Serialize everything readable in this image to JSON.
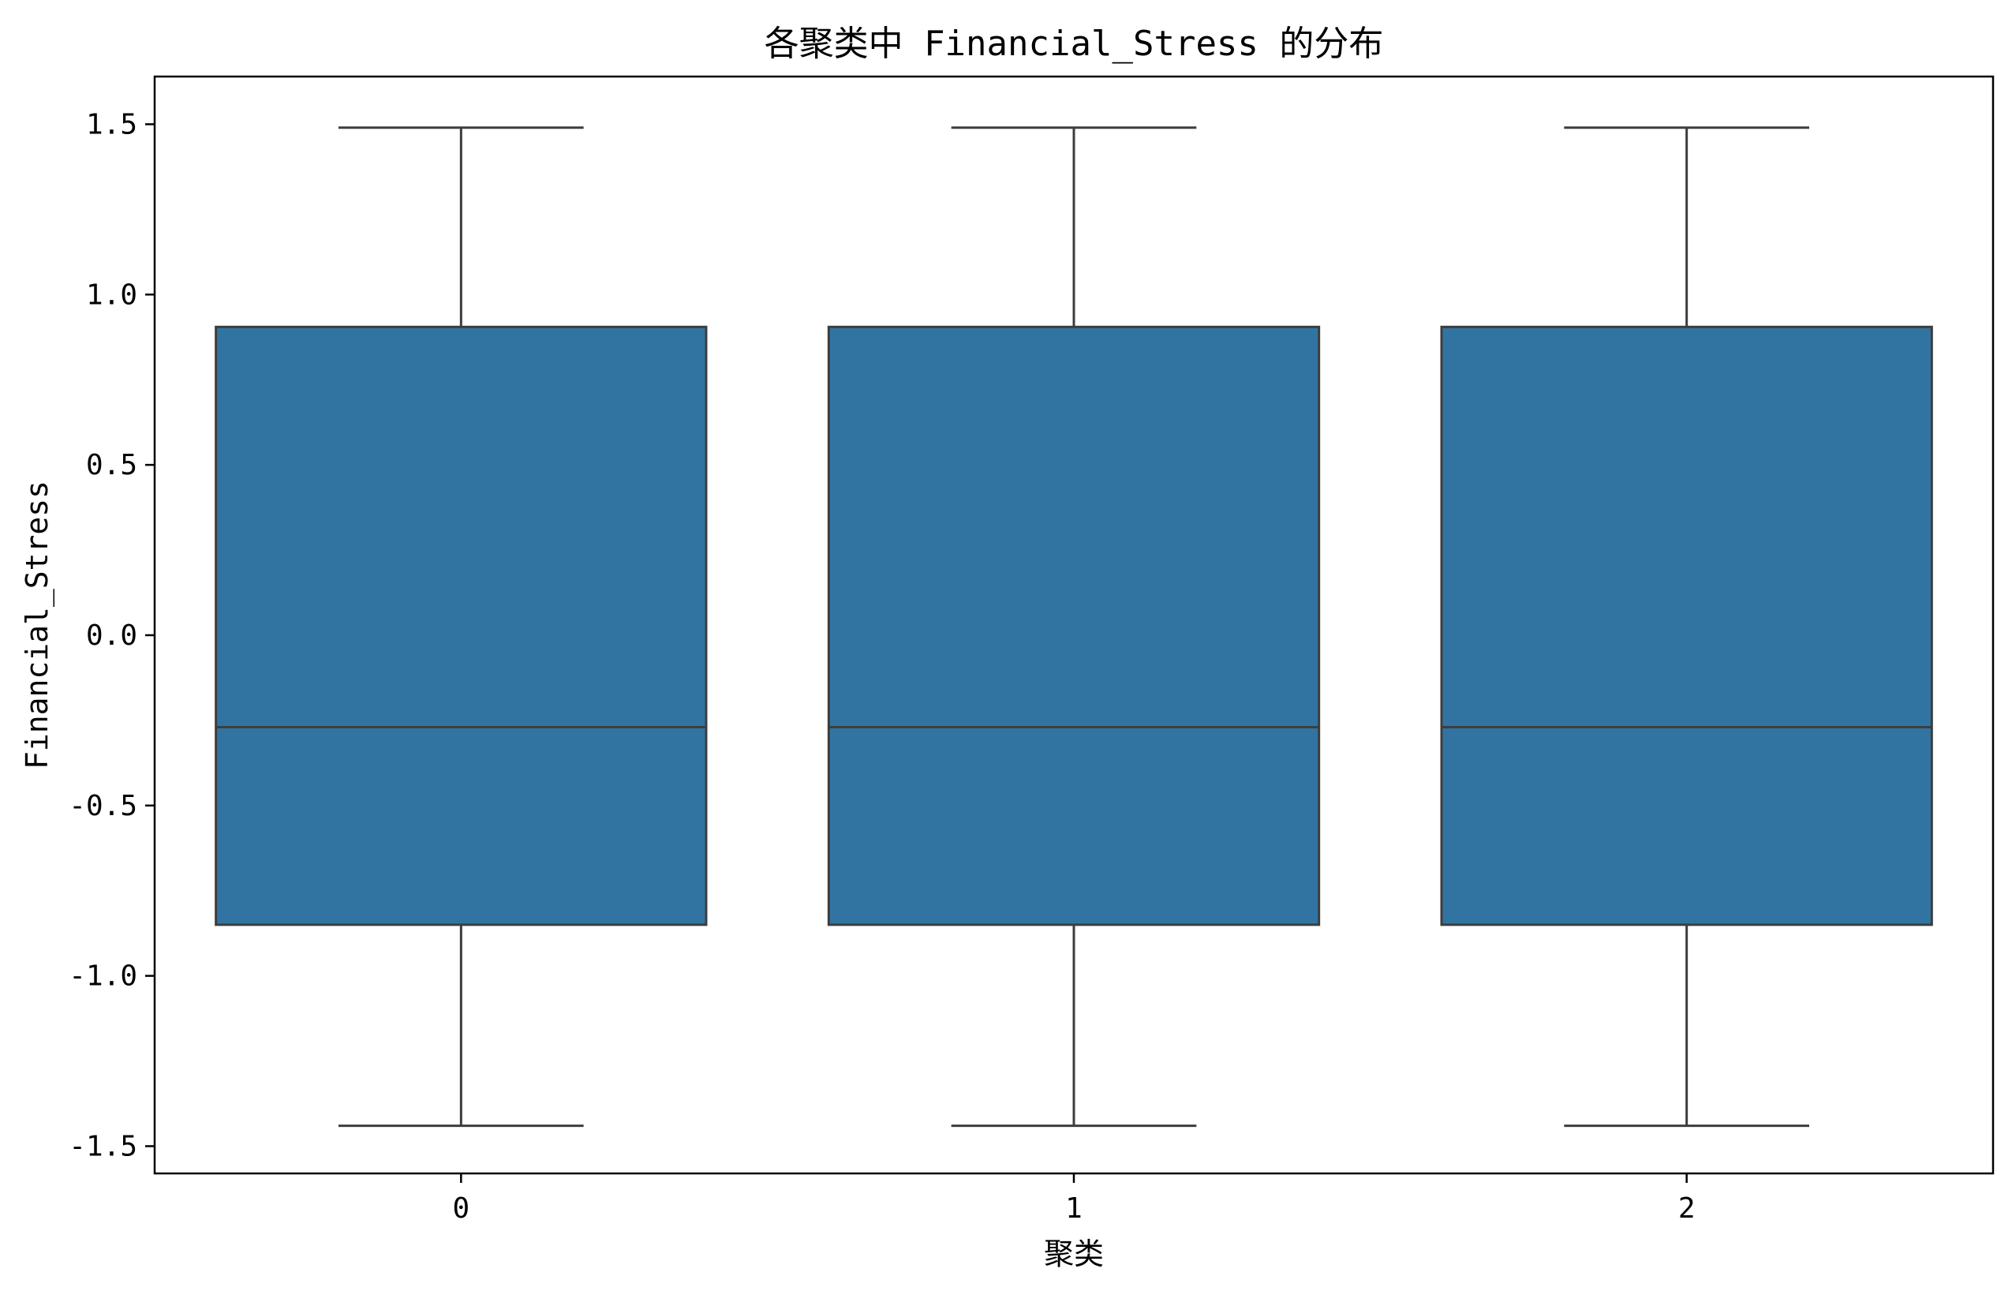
{
  "chart_data": {
    "type": "box",
    "title": "各聚类中 Financial_Stress 的分布",
    "xlabel": "聚类",
    "ylabel": "Financial_Stress",
    "categories": [
      "0",
      "1",
      "2"
    ],
    "y_ticks": [
      "-1.5",
      "-1.0",
      "-0.5",
      "0.0",
      "0.5",
      "1.0",
      "1.5"
    ],
    "y_tick_values": [
      -1.5,
      -1.0,
      -0.5,
      0.0,
      0.5,
      1.0,
      1.5
    ],
    "ylim": [
      -1.58,
      1.64
    ],
    "boxes": [
      {
        "category": "0",
        "whisker_low": -1.44,
        "q1": -0.85,
        "median": -0.27,
        "q3": 0.905,
        "whisker_high": 1.49
      },
      {
        "category": "1",
        "whisker_low": -1.44,
        "q1": -0.85,
        "median": -0.27,
        "q3": 0.905,
        "whisker_high": 1.49
      },
      {
        "category": "2",
        "whisker_low": -1.44,
        "q1": -0.85,
        "median": -0.27,
        "q3": 0.905,
        "whisker_high": 1.49
      }
    ],
    "box_color": "#3274a1",
    "line_color": "#3d3d3d",
    "grid": false,
    "legend": "none"
  }
}
